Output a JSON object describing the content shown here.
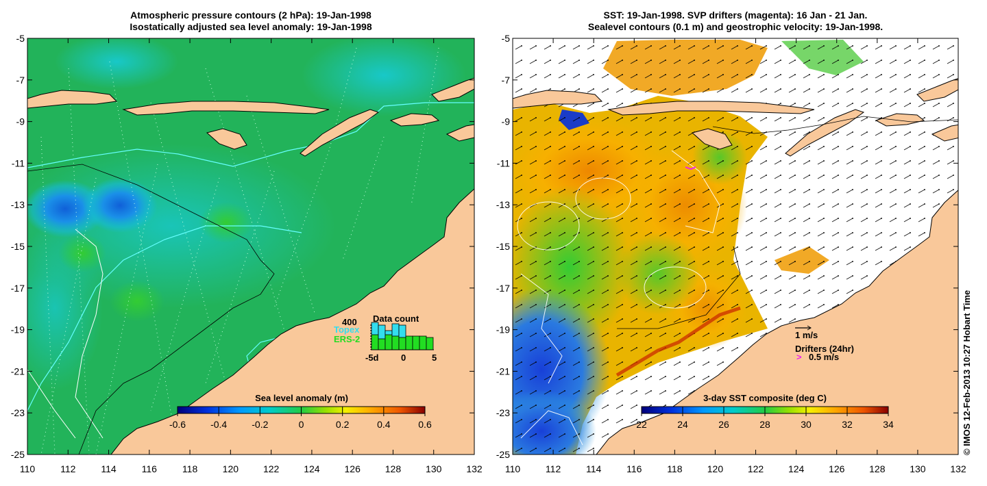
{
  "left_panel": {
    "title_line1": "Atmospheric pressure contours (2 hPa): 19-Jan-1998",
    "title_line2": "Isostatically adjusted sea level anomaly: 19-Jan-1998",
    "colorbar_label": "Sea level anomaly (m)",
    "colorbar_ticks": [
      "-0.6",
      "-0.4",
      "-0.2",
      "0",
      "0.2",
      "0.4",
      "0.6"
    ],
    "data_count": {
      "title": "Data count",
      "max_label": "400",
      "topex_label": "Topex",
      "ers2_label": "ERS-2",
      "axis_ticks": [
        "-5d",
        "0",
        "5"
      ],
      "topex_color": "#33ddee",
      "ers2_color": "#22dd22"
    }
  },
  "right_panel": {
    "title_line1": "SST: 19-Jan-1998. SVP drifters (magenta): 16 Jan - 21 Jan.",
    "title_line2": "Sealevel contours (0.1 m) and geostrophic velocity: 19-Jan-1998.",
    "colorbar_label": "3-day SST composite (deg C)",
    "colorbar_ticks": [
      "22",
      "24",
      "26",
      "28",
      "30",
      "32",
      "34"
    ],
    "velocity_key": "1 m/s",
    "drifters_key": "Drifters (24hr)",
    "drifters_speed": "0.5 m/s",
    "drifter_color": "#ee22ee"
  },
  "axes": {
    "y_ticks": [
      "-5",
      "-7",
      "-9",
      "-11",
      "-13",
      "-15",
      "-17",
      "-19",
      "-21",
      "-23",
      "-25"
    ],
    "x_ticks": [
      "110",
      "112",
      "114",
      "116",
      "118",
      "120",
      "122",
      "124",
      "126",
      "128",
      "130",
      "132"
    ]
  },
  "credit": "© IMOS 12-Feb-2013 10:27 Hobart Time",
  "colors": {
    "land": "#f9c89a",
    "sea_left": "#22b35a",
    "coast": "#000000"
  }
}
